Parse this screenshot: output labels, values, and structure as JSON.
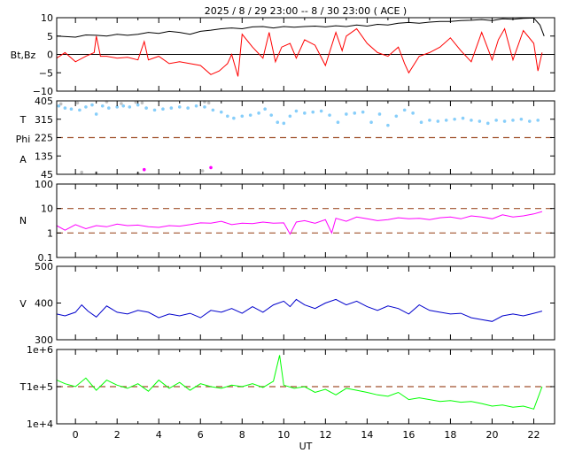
{
  "title": "2025 /  8 / 29   23:00 -- 8 / 30   23:00 ( ACE )",
  "x_axis": {
    "label": "UT",
    "range": [
      -0.9,
      23.0
    ],
    "ticks": [
      0,
      2,
      4,
      6,
      8,
      10,
      12,
      14,
      16,
      18,
      20,
      22
    ],
    "tick_labels": [
      "0",
      "2",
      "4",
      "6",
      "8",
      "10",
      "12",
      "14",
      "16",
      "18",
      "20",
      "22"
    ]
  },
  "chart_data": [
    {
      "type": "line",
      "panel": "magnetic-field",
      "ylabel": "Bt,Bz",
      "ylim": [
        -10,
        10
      ],
      "yticks": [
        10,
        5,
        0,
        -5,
        -10
      ],
      "ytick_labels": [
        "10",
        "5",
        "0",
        "−5",
        "−10"
      ],
      "zero_line": 0,
      "series": [
        {
          "color": "#000000",
          "x": [
            -0.9,
            0,
            0.5,
            1.0,
            1.5,
            2.0,
            2.5,
            3.0,
            3.5,
            4.0,
            4.5,
            5.0,
            5.5,
            6.0,
            6.5,
            7.0,
            7.5,
            8.0,
            8.5,
            9.0,
            9.5,
            10.0,
            10.5,
            11.0,
            11.5,
            12.0,
            12.5,
            13.0,
            13.5,
            14.0,
            14.5,
            15.0,
            15.5,
            16.0,
            16.5,
            17.0,
            17.5,
            18.0,
            18.5,
            19.0,
            19.5,
            20.0,
            20.5,
            21.0,
            21.5,
            22.0,
            22.3,
            22.5
          ],
          "values": [
            5,
            4.7,
            5.3,
            5.2,
            5.0,
            5.5,
            5.2,
            5.5,
            6.0,
            5.7,
            6.3,
            6.0,
            5.5,
            6.3,
            6.6,
            7.0,
            7.2,
            7.0,
            7.5,
            7.6,
            7.2,
            7.6,
            7.4,
            7.6,
            7.7,
            7.5,
            7.8,
            7.6,
            8.0,
            7.7,
            8.2,
            8.0,
            8.5,
            8.7,
            8.5,
            8.8,
            9.0,
            9.0,
            9.2,
            9.3,
            9.5,
            9.2,
            9.7,
            9.6,
            9.8,
            9.9,
            8.0,
            5.0
          ]
        },
        {
          "color": "#ff0000",
          "x": [
            -0.9,
            -0.5,
            0,
            0.5,
            0.9,
            1.0,
            1.2,
            1.5,
            2.0,
            2.5,
            3.0,
            3.3,
            3.5,
            4.0,
            4.5,
            5.0,
            5.5,
            6.0,
            6.5,
            6.9,
            7.3,
            7.5,
            7.8,
            8.0,
            8.5,
            9.0,
            9.3,
            9.6,
            9.9,
            10.3,
            10.6,
            11.0,
            11.5,
            12.0,
            12.5,
            12.8,
            13.0,
            13.5,
            14.0,
            14.5,
            15.0,
            15.5,
            15.8,
            16.0,
            16.5,
            17.0,
            17.5,
            18.0,
            18.5,
            19.0,
            19.5,
            20.0,
            20.3,
            20.6,
            21.0,
            21.5,
            22.0,
            22.2,
            22.4
          ],
          "values": [
            -1,
            0.5,
            -2,
            -0.5,
            0.5,
            5,
            -0.5,
            -0.5,
            -1,
            -0.8,
            -1.5,
            3.5,
            -1.5,
            -0.5,
            -2.5,
            -2,
            -2.5,
            -3,
            -5.5,
            -4.5,
            -2.5,
            0,
            -6,
            5.5,
            2,
            -1,
            6,
            -2,
            2,
            3,
            -1,
            4,
            2.5,
            -3,
            6,
            1,
            5,
            7,
            3,
            0.5,
            -0.5,
            2,
            -2.5,
            -5,
            -0.5,
            0.5,
            2,
            4.5,
            1,
            -2,
            6,
            -1.5,
            4,
            7,
            -1.5,
            6.5,
            3,
            -4.5,
            0.5
          ]
        }
      ]
    },
    {
      "type": "scatter",
      "panel": "field-angles",
      "ylabels": [
        "T",
        "Phi",
        "A"
      ],
      "ylim": [
        45,
        405
      ],
      "yticks": [
        405,
        315,
        225,
        135,
        45
      ],
      "ytick_labels": [
        "405",
        "315",
        "225",
        "135",
        "45"
      ],
      "reference_line": 225,
      "series": [
        {
          "color": "#87cefa",
          "x": [
            -0.8,
            -0.5,
            -0.2,
            0.2,
            0.5,
            0.8,
            1.0,
            1.3,
            1.6,
            2.0,
            2.3,
            2.6,
            3.0,
            3.4,
            3.8,
            4.2,
            4.6,
            5.0,
            5.4,
            5.8,
            6.2,
            6.6,
            7.0,
            7.3,
            7.6,
            8.0,
            8.4,
            8.8,
            9.1,
            9.4,
            9.7,
            10.0,
            10.3,
            10.6,
            11.0,
            11.4,
            11.8,
            12.2,
            12.6,
            13.0,
            13.4,
            13.8,
            14.2,
            14.6,
            15.0,
            15.4,
            15.8,
            16.2,
            16.6,
            17.0,
            17.4,
            17.8,
            18.2,
            18.6,
            19.0,
            19.4,
            19.8,
            20.2,
            20.6,
            21.0,
            21.4,
            21.8,
            22.2
          ],
          "values": [
            380,
            370,
            365,
            360,
            375,
            385,
            340,
            380,
            370,
            375,
            380,
            375,
            385,
            370,
            360,
            365,
            370,
            375,
            370,
            380,
            375,
            360,
            350,
            330,
            320,
            330,
            335,
            345,
            365,
            335,
            300,
            295,
            330,
            355,
            345,
            350,
            355,
            335,
            300,
            340,
            345,
            350,
            300,
            340,
            285,
            330,
            360,
            345,
            300,
            310,
            305,
            310,
            315,
            320,
            310,
            305,
            295,
            310,
            305,
            310,
            315,
            305,
            310
          ]
        },
        {
          "color": "#c0c0c0",
          "x": [
            -0.7,
            0.1,
            1.5,
            2.2,
            2.9,
            3.2,
            6.2,
            6.4,
            0.3,
            1.0,
            3.0,
            6.1
          ],
          "values": [
            390,
            395,
            400,
            392,
            398,
            395,
            400,
            395,
            55,
            52,
            50,
            62
          ]
        },
        {
          "color": "#ff00ff",
          "x": [
            3.3,
            6.5
          ],
          "values": [
            68,
            78
          ]
        }
      ]
    },
    {
      "type": "line",
      "panel": "density",
      "ylabel": "N",
      "yscale": "log",
      "ylim": [
        0.1,
        100
      ],
      "yticks": [
        100,
        10,
        1,
        0.1
      ],
      "ytick_labels": [
        "100",
        "10",
        "1",
        "0.1"
      ],
      "reference_lines": [
        10,
        1
      ],
      "series": [
        {
          "color": "#ff00ff",
          "x": [
            -0.9,
            -0.5,
            0,
            0.5,
            1.0,
            1.5,
            2.0,
            2.5,
            3.0,
            3.5,
            4.0,
            4.5,
            5.0,
            5.5,
            6.0,
            6.5,
            7.0,
            7.5,
            8.0,
            8.5,
            9.0,
            9.5,
            10.0,
            10.3,
            10.6,
            11.0,
            11.5,
            12.0,
            12.3,
            12.5,
            13.0,
            13.5,
            14.0,
            14.5,
            15.0,
            15.5,
            16.0,
            16.5,
            17.0,
            17.5,
            18.0,
            18.5,
            19.0,
            19.5,
            20.0,
            20.5,
            21.0,
            21.5,
            22.0,
            22.4
          ],
          "values": [
            2.0,
            1.3,
            2.2,
            1.5,
            2.0,
            1.8,
            2.3,
            2.0,
            2.1,
            1.8,
            1.7,
            2.0,
            1.9,
            2.2,
            2.6,
            2.5,
            3.0,
            2.2,
            2.5,
            2.4,
            2.8,
            2.5,
            2.6,
            0.9,
            2.8,
            3.2,
            2.5,
            3.5,
            1.0,
            4.0,
            3.0,
            4.5,
            3.8,
            3.2,
            3.5,
            4.2,
            3.8,
            4.0,
            3.5,
            4.2,
            4.5,
            3.8,
            5.0,
            4.5,
            3.8,
            5.5,
            4.5,
            5.0,
            6.0,
            7.5
          ]
        }
      ]
    },
    {
      "type": "line",
      "panel": "speed",
      "ylabel": "V",
      "ylim": [
        300,
        500
      ],
      "yticks": [
        500,
        400,
        300
      ],
      "ytick_labels": [
        "500",
        "400",
        "300"
      ],
      "series": [
        {
          "color": "#0000cc",
          "x": [
            -0.9,
            -0.5,
            0,
            0.3,
            0.6,
            1.0,
            1.5,
            2.0,
            2.5,
            3.0,
            3.5,
            4.0,
            4.5,
            5.0,
            5.5,
            6.0,
            6.5,
            7.0,
            7.5,
            8.0,
            8.5,
            9.0,
            9.5,
            10.0,
            10.3,
            10.6,
            11.0,
            11.5,
            12.0,
            12.5,
            13.0,
            13.5,
            14.0,
            14.5,
            15.0,
            15.5,
            16.0,
            16.5,
            17.0,
            17.5,
            18.0,
            18.5,
            19.0,
            19.5,
            20.0,
            20.5,
            21.0,
            21.5,
            22.0,
            22.4
          ],
          "values": [
            370,
            365,
            375,
            395,
            378,
            362,
            392,
            375,
            370,
            380,
            375,
            360,
            370,
            365,
            372,
            360,
            380,
            375,
            385,
            372,
            390,
            375,
            395,
            405,
            390,
            410,
            395,
            385,
            400,
            410,
            395,
            405,
            390,
            380,
            392,
            385,
            370,
            395,
            380,
            375,
            370,
            372,
            360,
            355,
            350,
            365,
            370,
            365,
            372,
            378
          ]
        }
      ]
    },
    {
      "type": "line",
      "panel": "temperature",
      "ylabel": "T",
      "yscale": "log",
      "ylim": [
        10000,
        1000000
      ],
      "yticks": [
        1000000,
        100000,
        10000
      ],
      "ytick_labels": [
        "1e+6",
        "1e+5",
        "1e+4"
      ],
      "reference_line": 100000,
      "series": [
        {
          "color": "#00ff00",
          "x": [
            -0.9,
            -0.5,
            0,
            0.5,
            1.0,
            1.5,
            2.0,
            2.5,
            3.0,
            3.5,
            4.0,
            4.5,
            5.0,
            5.5,
            6.0,
            6.5,
            7.0,
            7.5,
            8.0,
            8.5,
            9.0,
            9.5,
            9.8,
            10.0,
            10.5,
            11.0,
            11.5,
            12.0,
            12.5,
            13.0,
            13.5,
            14.0,
            14.5,
            15.0,
            15.5,
            16.0,
            16.5,
            17.0,
            17.5,
            18.0,
            18.5,
            19.0,
            19.5,
            20.0,
            20.5,
            21.0,
            21.5,
            22.0,
            22.4
          ],
          "values": [
            150000,
            120000,
            100000,
            170000,
            80000,
            150000,
            110000,
            90000,
            120000,
            75000,
            150000,
            90000,
            130000,
            80000,
            120000,
            100000,
            90000,
            110000,
            100000,
            120000,
            95000,
            140000,
            700000,
            110000,
            90000,
            100000,
            70000,
            85000,
            60000,
            90000,
            80000,
            70000,
            60000,
            55000,
            70000,
            45000,
            50000,
            45000,
            40000,
            42000,
            38000,
            40000,
            35000,
            30000,
            32000,
            28000,
            30000,
            25000,
            100000
          ]
        }
      ]
    }
  ]
}
